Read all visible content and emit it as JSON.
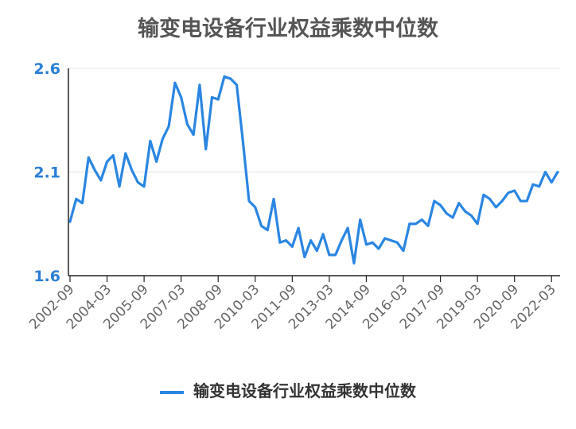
{
  "chart_data": {
    "type": "line",
    "title": "输变电设备行业权益乘数中位数",
    "xlabel": "",
    "ylabel": "",
    "ylim": [
      1.6,
      2.6
    ],
    "yticks": [
      "2.6",
      "2.1",
      "1.6"
    ],
    "xticks": [
      "2002-09",
      "2004-03",
      "2005-09",
      "2007-03",
      "2008-09",
      "2010-03",
      "2011-09",
      "2013-03",
      "2014-09",
      "2016-03",
      "2017-09",
      "2019-03",
      "2020-09",
      "2022-03"
    ],
    "grid": true,
    "legend_position": "bottom",
    "series": [
      {
        "name": "输变电设备行业权益乘数中位数",
        "color": "#2a86e2",
        "x_start": "2002-09",
        "frequency": "quarterly",
        "values": [
          1.86,
          1.97,
          1.95,
          2.17,
          2.11,
          2.06,
          2.15,
          2.18,
          2.03,
          2.19,
          2.11,
          2.05,
          2.03,
          2.25,
          2.15,
          2.26,
          2.32,
          2.53,
          2.46,
          2.33,
          2.28,
          2.52,
          2.21,
          2.46,
          2.45,
          2.56,
          2.55,
          2.52,
          2.25,
          1.96,
          1.93,
          1.84,
          1.82,
          1.97,
          1.76,
          1.77,
          1.74,
          1.83,
          1.69,
          1.77,
          1.72,
          1.8,
          1.7,
          1.7,
          1.77,
          1.83,
          1.66,
          1.87,
          1.75,
          1.76,
          1.73,
          1.78,
          1.77,
          1.76,
          1.72,
          1.85,
          1.85,
          1.87,
          1.84,
          1.96,
          1.94,
          1.9,
          1.88,
          1.95,
          1.91,
          1.89,
          1.85,
          1.99,
          1.97,
          1.93,
          1.96,
          2.0,
          2.01,
          1.96,
          1.96,
          2.04,
          2.03,
          2.1,
          2.05,
          2.1
        ]
      }
    ]
  },
  "legend": {
    "label": "输变电设备行业权益乘数中位数"
  }
}
